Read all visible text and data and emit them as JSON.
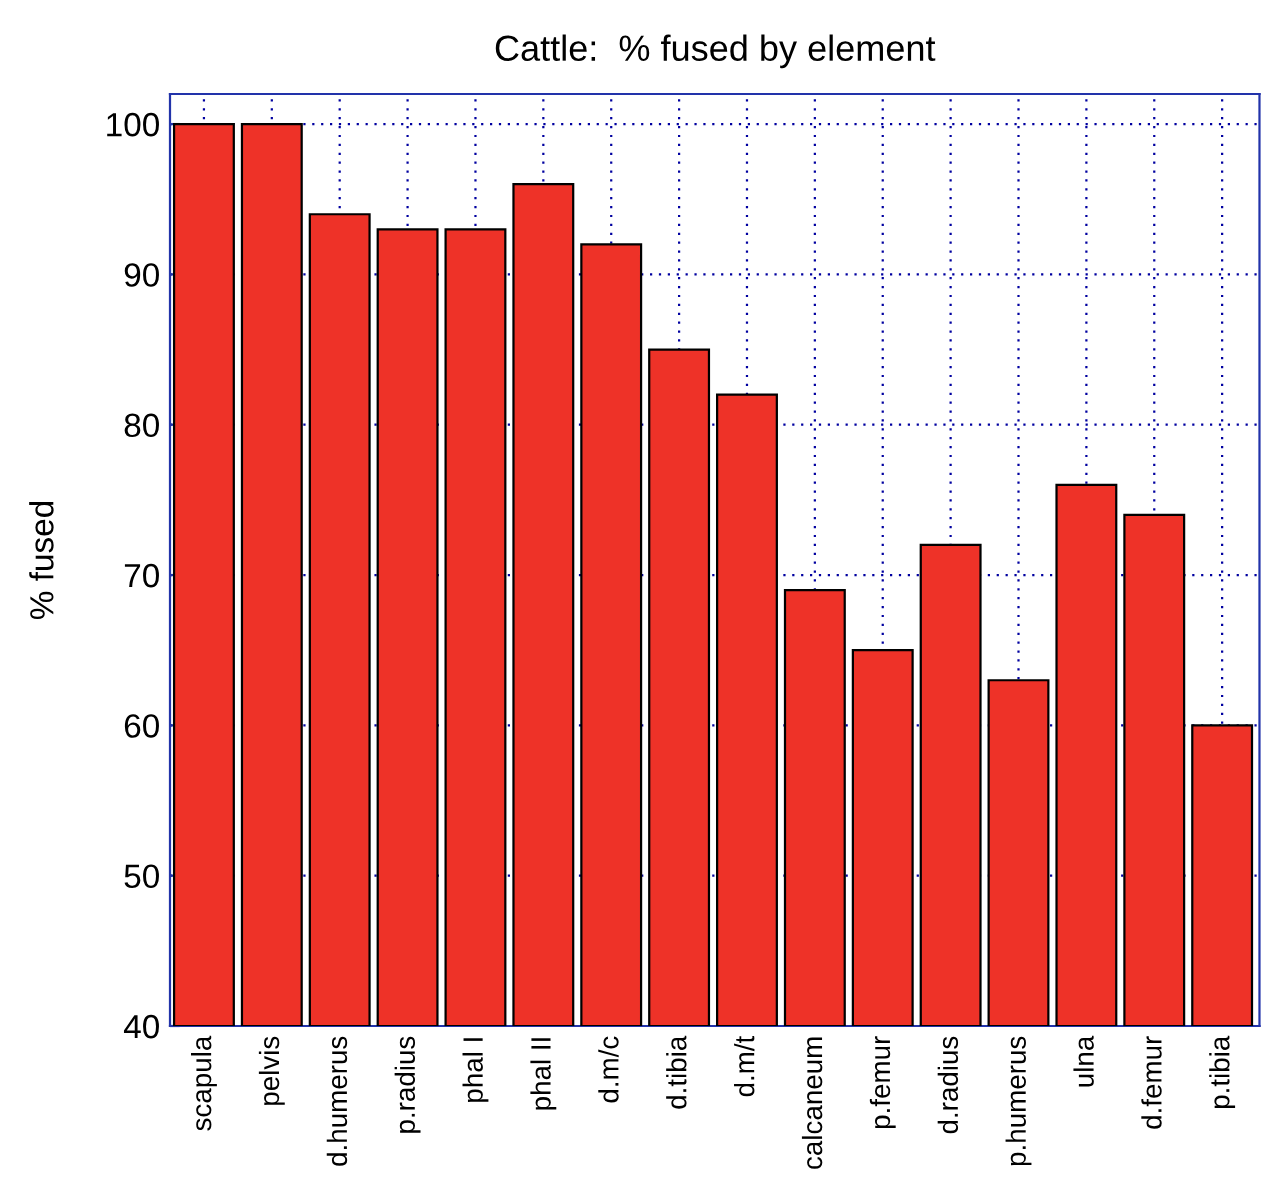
{
  "chart_data": {
    "type": "bar",
    "title": "Cattle:  % fused by element",
    "ylabel": "% fused",
    "categories": [
      "scapula",
      "pelvis",
      "d.humerus",
      "p.radius",
      "phal I",
      "phal II",
      "d.m/c",
      "d.tibia",
      "d.m/t",
      "calcaneum",
      "p.femur",
      "d.radius",
      "p.humerus",
      "ulna",
      "d.femur",
      "p.tibia"
    ],
    "values": [
      100,
      100,
      94,
      93,
      93,
      96,
      92,
      85,
      82,
      69,
      65,
      72,
      63,
      76,
      74,
      60
    ],
    "color": "#ee3228",
    "ylim": [
      40,
      102
    ],
    "yticks": [
      40,
      50,
      60,
      70,
      80,
      90,
      100
    ],
    "grid": true
  }
}
